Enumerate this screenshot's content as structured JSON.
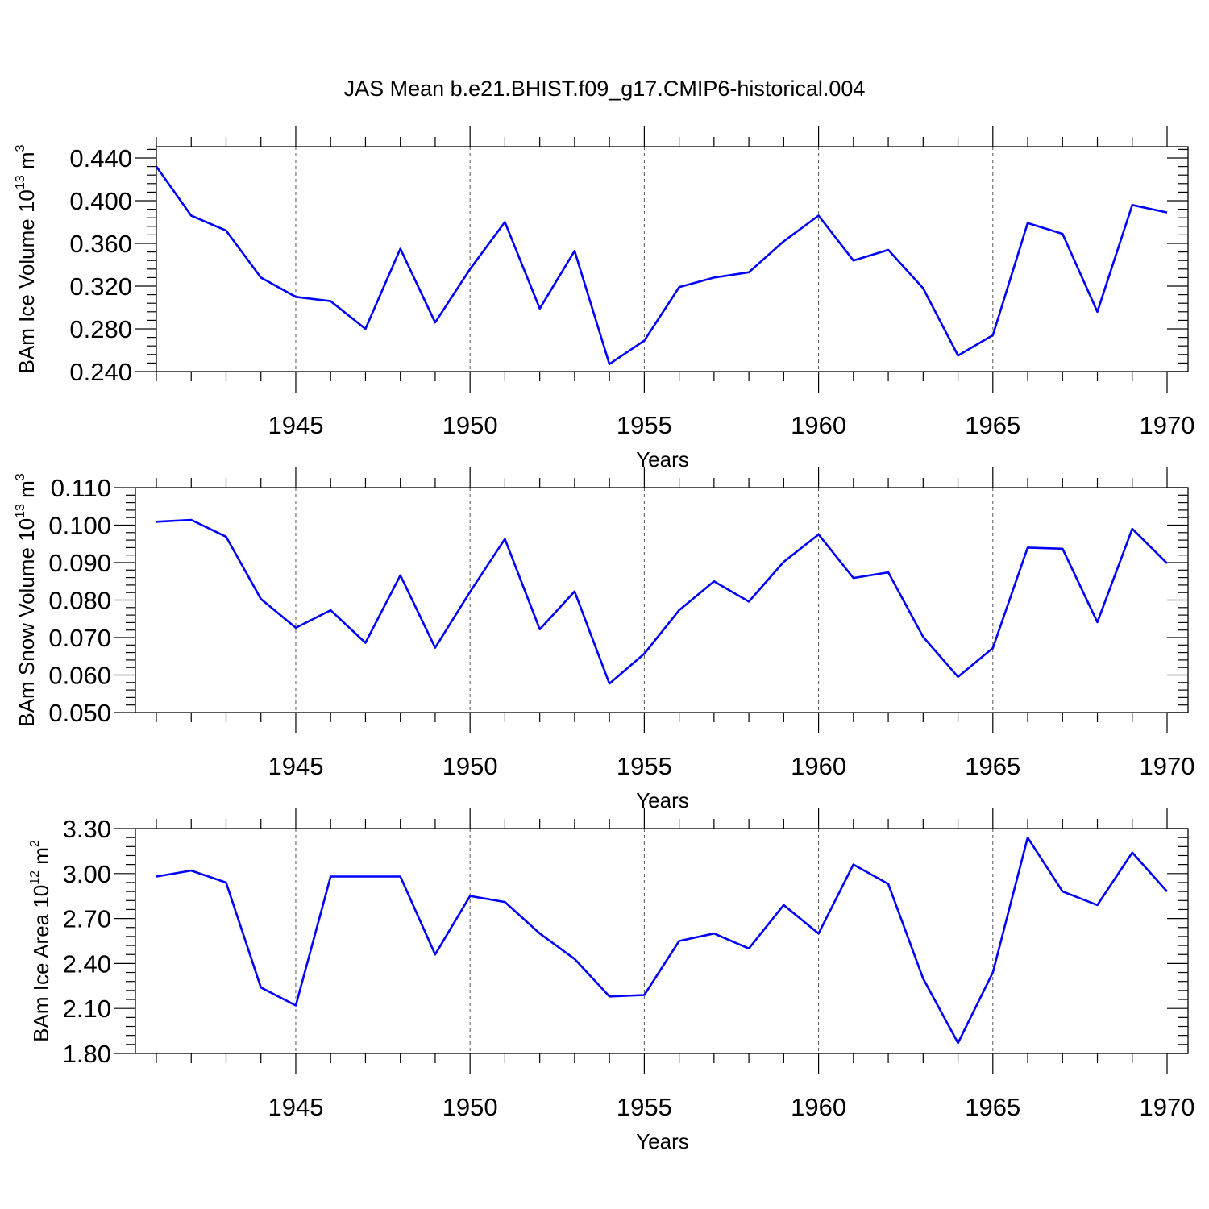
{
  "figure": {
    "title": "JAS Mean b.e21.BHIST.f09_g17.CMIP6-historical.004",
    "line_color": "#0000ff"
  },
  "chart_data": [
    {
      "type": "line",
      "title": "",
      "xlabel": "Years",
      "ylabel": {
        "prefix": "BAm Ice Volume 10",
        "exp": "13",
        "unit": " m",
        "unit_exp": "3"
      },
      "xlim": [
        1941,
        1970
      ],
      "ylim": [
        0.24,
        0.45
      ],
      "x_ticks": [
        1945,
        1950,
        1955,
        1960,
        1965,
        1970
      ],
      "y_ticks": [
        0.24,
        0.28,
        0.32,
        0.36,
        0.4,
        0.44
      ],
      "y_tick_labels": [
        "0.240",
        "0.280",
        "0.320",
        "0.360",
        "0.400",
        "0.440"
      ],
      "grid": "vertical dashed at major x ticks",
      "series": [
        {
          "x": [
            1941,
            1942,
            1943,
            1944,
            1945,
            1946,
            1947,
            1948,
            1949,
            1950,
            1951,
            1952,
            1953,
            1954,
            1955,
            1956,
            1957,
            1958,
            1959,
            1960,
            1961,
            1962,
            1963,
            1964,
            1965,
            1966,
            1967,
            1968,
            1969,
            1970
          ],
          "values": [
            0.432,
            0.386,
            0.372,
            0.328,
            0.31,
            0.306,
            0.28,
            0.355,
            0.286,
            0.336,
            0.38,
            0.299,
            0.353,
            0.247,
            0.269,
            0.319,
            0.328,
            0.333,
            0.362,
            0.386,
            0.344,
            0.354,
            0.318,
            0.255,
            0.274,
            0.379,
            0.369,
            0.296,
            0.396,
            0.389
          ]
        }
      ]
    },
    {
      "type": "line",
      "title": "",
      "xlabel": "Years",
      "ylabel": {
        "prefix": "BAm Snow Volume 10",
        "exp": "13",
        "unit": " m",
        "unit_exp": "3"
      },
      "xlim": [
        1941,
        1970
      ],
      "ylim": [
        0.05,
        0.11
      ],
      "x_ticks": [
        1945,
        1950,
        1955,
        1960,
        1965,
        1970
      ],
      "y_ticks": [
        0.05,
        0.06,
        0.07,
        0.08,
        0.09,
        0.1,
        0.11
      ],
      "y_tick_labels": [
        "0.050",
        "0.060",
        "0.070",
        "0.080",
        "0.090",
        "0.100",
        "0.110"
      ],
      "grid": "vertical dashed at major x ticks",
      "series": [
        {
          "x": [
            1941,
            1942,
            1943,
            1944,
            1945,
            1946,
            1947,
            1948,
            1949,
            1950,
            1951,
            1952,
            1953,
            1954,
            1955,
            1956,
            1957,
            1958,
            1959,
            1960,
            1961,
            1962,
            1963,
            1964,
            1965,
            1966,
            1967,
            1968,
            1969,
            1970
          ],
          "values": [
            0.1009,
            0.1014,
            0.0969,
            0.0803,
            0.0726,
            0.0773,
            0.0686,
            0.0866,
            0.0673,
            0.0822,
            0.0963,
            0.0722,
            0.0823,
            0.0577,
            0.0657,
            0.0773,
            0.085,
            0.0796,
            0.0902,
            0.0975,
            0.0859,
            0.0874,
            0.0702,
            0.0595,
            0.0672,
            0.094,
            0.0937,
            0.0741,
            0.099,
            0.0898
          ]
        }
      ]
    },
    {
      "type": "line",
      "title": "",
      "xlabel": "Years",
      "ylabel": {
        "prefix": "BAm Ice Area 10",
        "exp": "12",
        "unit": " m",
        "unit_exp": "2"
      },
      "xlim": [
        1941,
        1970
      ],
      "ylim": [
        1.8,
        3.3
      ],
      "x_ticks": [
        1945,
        1950,
        1955,
        1960,
        1965,
        1970
      ],
      "y_ticks": [
        1.8,
        2.1,
        2.4,
        2.7,
        3.0,
        3.3
      ],
      "y_tick_labels": [
        "1.80",
        "2.10",
        "2.40",
        "2.70",
        "3.00",
        "3.30"
      ],
      "grid": "vertical dashed at major x ticks",
      "series": [
        {
          "x": [
            1941,
            1942,
            1943,
            1944,
            1945,
            1946,
            1947,
            1948,
            1949,
            1950,
            1951,
            1952,
            1953,
            1954,
            1955,
            1956,
            1957,
            1958,
            1959,
            1960,
            1961,
            1962,
            1963,
            1964,
            1965,
            1966,
            1967,
            1968,
            1969,
            1970
          ],
          "values": [
            2.98,
            3.02,
            2.94,
            2.24,
            2.12,
            2.98,
            2.98,
            2.98,
            2.46,
            2.85,
            2.81,
            2.6,
            2.43,
            2.18,
            2.19,
            2.55,
            2.6,
            2.5,
            2.79,
            2.6,
            3.06,
            2.93,
            2.3,
            1.87,
            2.34,
            3.24,
            2.88,
            2.79,
            3.14,
            2.88
          ]
        }
      ]
    }
  ]
}
